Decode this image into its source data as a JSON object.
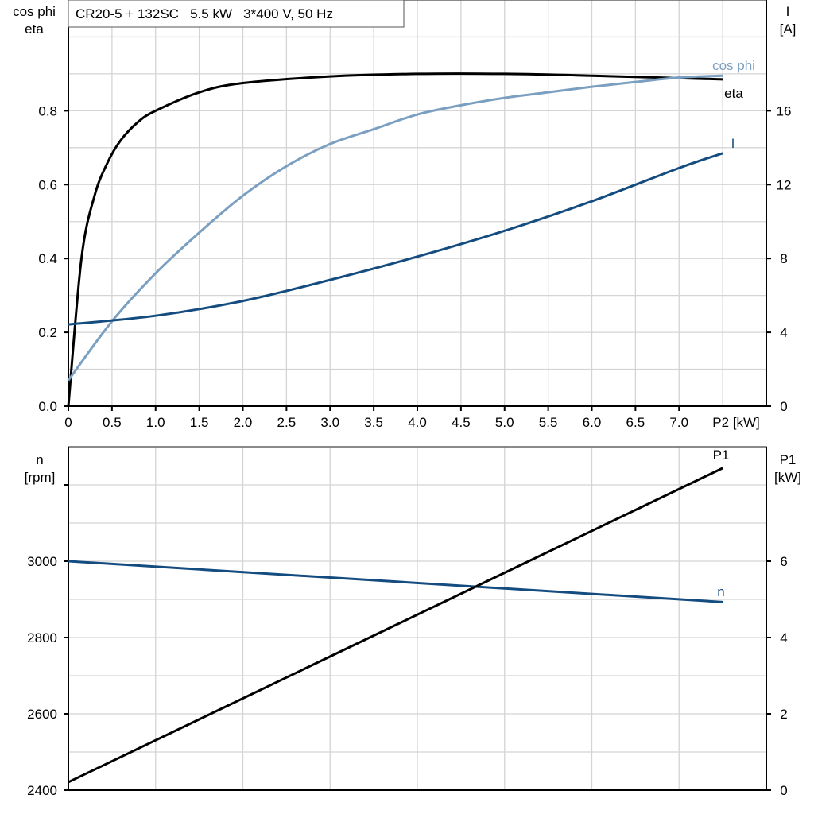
{
  "chart_data": [
    {
      "type": "line",
      "title": "CR20-5 + 132SC   5.5 kW   3*400 V, 50 Hz",
      "xlabel": "P2 [kW]",
      "ylabel_left": [
        "cos phi",
        "eta"
      ],
      "ylabel_right": [
        "I",
        "[A]"
      ],
      "xlim": [
        0,
        8
      ],
      "ylim_left": [
        0,
        1.1
      ],
      "ylim_right": [
        0,
        22
      ],
      "grid": true,
      "x_ticks": [
        "0",
        "0.5",
        "1.0",
        "1.5",
        "2.0",
        "2.5",
        "3.0",
        "3.5",
        "4.0",
        "4.5",
        "5.0",
        "5.5",
        "6.0",
        "6.5",
        "7.0"
      ],
      "y_ticks_left": [
        "0.0",
        "0.2",
        "0.4",
        "0.6",
        "0.8"
      ],
      "y_ticks_right": [
        "0",
        "4",
        "8",
        "12",
        "16"
      ],
      "series": [
        {
          "name": "eta",
          "axis": "left",
          "color": "#000000",
          "x": [
            0,
            0.15,
            0.3,
            0.45,
            0.6,
            0.8,
            1.0,
            1.5,
            2.0,
            3.0,
            4.0,
            5.0,
            6.0,
            7.5
          ],
          "y": [
            0,
            0.4,
            0.57,
            0.66,
            0.72,
            0.77,
            0.8,
            0.85,
            0.875,
            0.893,
            0.9,
            0.9,
            0.895,
            0.885
          ]
        },
        {
          "name": "cos phi",
          "axis": "left",
          "color": "#7a9fc0",
          "x": [
            0,
            0.5,
            1.0,
            1.5,
            2.0,
            2.5,
            3.0,
            3.5,
            4.0,
            4.5,
            5.0,
            5.5,
            6.0,
            6.5,
            7.0,
            7.5
          ],
          "y": [
            0.07,
            0.23,
            0.36,
            0.47,
            0.57,
            0.65,
            0.71,
            0.75,
            0.79,
            0.815,
            0.835,
            0.85,
            0.865,
            0.878,
            0.89,
            0.895
          ]
        },
        {
          "name": "I",
          "axis": "right",
          "color": "#154c80",
          "x": [
            0,
            1.0,
            2.0,
            3.0,
            4.0,
            5.0,
            6.0,
            7.0,
            7.5
          ],
          "y": [
            4.43,
            4.9,
            5.7,
            6.84,
            8.1,
            9.5,
            11.1,
            12.9,
            13.7
          ]
        }
      ]
    },
    {
      "type": "line",
      "ylabel_left": [
        "n",
        "[rpm]"
      ],
      "ylabel_right": [
        "P1",
        "[kW]"
      ],
      "xlim": [
        0,
        8
      ],
      "ylim_left": [
        2400,
        3300
      ],
      "ylim_right": [
        0,
        9
      ],
      "grid": true,
      "y_ticks_left": [
        "2400",
        "2600",
        "2800",
        "3000"
      ],
      "y_ticks_right": [
        "0",
        "2",
        "4",
        "6"
      ],
      "series": [
        {
          "name": "n",
          "axis": "left",
          "color": "#154c80",
          "x": [
            0,
            7.5
          ],
          "y": [
            3000,
            2893
          ]
        },
        {
          "name": "P1",
          "axis": "right",
          "color": "#000000",
          "x": [
            0,
            7.5
          ],
          "y": [
            0.21,
            8.44
          ]
        }
      ]
    }
  ]
}
